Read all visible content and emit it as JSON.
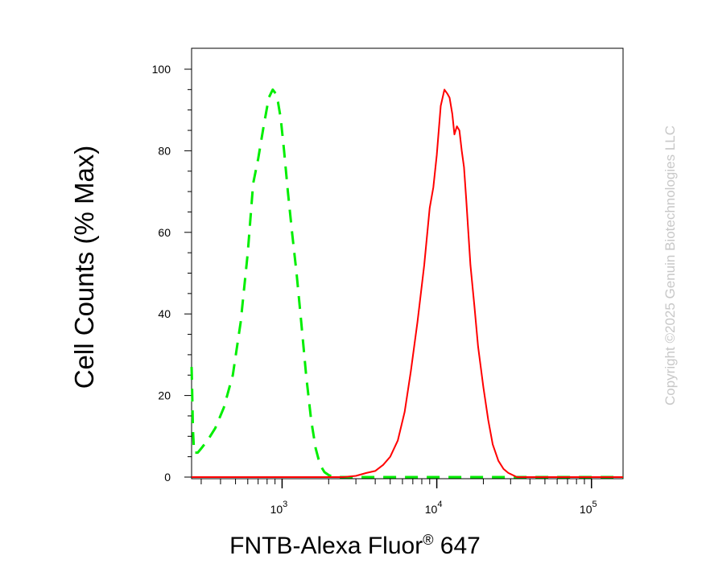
{
  "copyright": "Copyright ©2025 Genuin Biotechnologies LLC",
  "chart_data": {
    "type": "line",
    "title": "",
    "ylabel": "Cell Counts (% Max)",
    "xlabel_main": "FNTB-Alexa Fluor",
    "xlabel_sup": "®",
    "xlabel_tail": " 647",
    "x_scale": "log",
    "xlim": [
      260,
      160000
    ],
    "ylim": [
      0,
      100
    ],
    "yticks": [
      0,
      20,
      40,
      60,
      80,
      100
    ],
    "ytick_labels": [
      "0",
      "20",
      "40",
      "60",
      "80",
      "100"
    ],
    "xticks_major": [
      1000,
      10000,
      100000
    ],
    "xtick_labels": [
      {
        "base": "10",
        "exp": "3"
      },
      {
        "base": "10",
        "exp": "4"
      },
      {
        "base": "10",
        "exp": "5"
      }
    ],
    "grid": false,
    "series": [
      {
        "color": "#00ee00",
        "dash": "dashed",
        "x": [
          260,
          262,
          265,
          270,
          285,
          300,
          330,
          370,
          420,
          480,
          540,
          600,
          650,
          700,
          760,
          820,
          870,
          910,
          940,
          980,
          1030,
          1090,
          1160,
          1240,
          1330,
          1430,
          1540,
          1650,
          1760,
          1880,
          2000,
          2150,
          2400,
          3000,
          5000,
          10000,
          30000,
          160000
        ],
        "y": [
          27,
          22,
          12,
          6,
          6,
          7,
          9,
          12,
          17,
          25,
          38,
          55,
          72,
          78,
          86,
          93,
          95,
          94,
          92,
          88,
          80,
          70,
          60,
          50,
          38,
          25,
          14,
          7,
          3,
          1.2,
          0.5,
          0,
          0,
          0,
          0,
          0,
          0,
          0
        ]
      },
      {
        "color": "#ff0000",
        "dash": "solid",
        "x": [
          260,
          1000,
          2500,
          3000,
          3500,
          4000,
          4500,
          5000,
          5600,
          6200,
          6800,
          7500,
          8300,
          9000,
          9500,
          10000,
          10600,
          11200,
          11700,
          12100,
          12600,
          13000,
          13500,
          14000,
          14500,
          15000,
          15500,
          16000,
          16500,
          17500,
          18500,
          20000,
          21500,
          23000,
          25000,
          27000,
          29000,
          31000,
          33000,
          36000,
          40000,
          50000,
          100000,
          160000
        ],
        "y": [
          0,
          0,
          0,
          0.3,
          1,
          1.5,
          3,
          5,
          9,
          16,
          26,
          38,
          52,
          66,
          71,
          79,
          91,
          95,
          94,
          93,
          89,
          84,
          86,
          85,
          80,
          76,
          68,
          60,
          52,
          42,
          32,
          22,
          14,
          8,
          4,
          2,
          1,
          0.5,
          0,
          0,
          0,
          0,
          0,
          0
        ]
      }
    ]
  }
}
